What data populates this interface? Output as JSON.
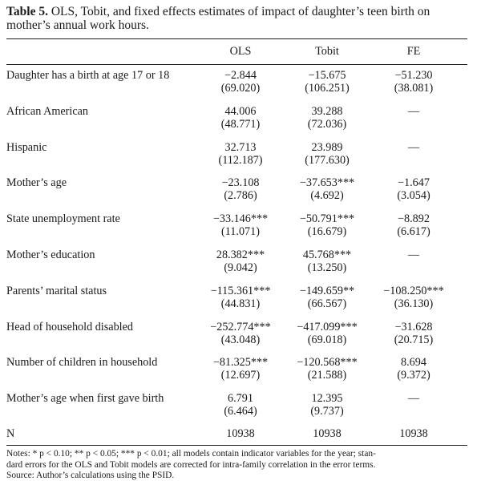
{
  "caption": {
    "label": "Table 5.",
    "text": "OLS, Tobit, and fixed effects estimates of impact of daughter’s teen birth on mother’s annual work hours."
  },
  "columns": [
    "OLS",
    "Tobit",
    "FE"
  ],
  "rows": [
    {
      "label": "Daughter has a birth at age 17 or 18",
      "ols": {
        "est": "−2.844",
        "se": "(69.020)"
      },
      "tobit": {
        "est": "−15.675",
        "se": "(106.251)"
      },
      "fe": {
        "est": "−51.230",
        "se": "(38.081)"
      }
    },
    {
      "label": "African American",
      "ols": {
        "est": "44.006",
        "se": "(48.771)"
      },
      "tobit": {
        "est": "39.288",
        "se": "(72.036)"
      },
      "fe": {
        "est": "—",
        "se": ""
      }
    },
    {
      "label": "Hispanic",
      "ols": {
        "est": "32.713",
        "se": "(112.187)"
      },
      "tobit": {
        "est": "23.989",
        "se": "(177.630)"
      },
      "fe": {
        "est": "—",
        "se": ""
      }
    },
    {
      "label": "Mother’s age",
      "ols": {
        "est": "−23.108",
        "se": "(2.786)"
      },
      "tobit": {
        "est": "−37.653***",
        "se": "(4.692)"
      },
      "fe": {
        "est": "−1.647",
        "se": "(3.054)"
      }
    },
    {
      "label": "State unemployment rate",
      "ols": {
        "est": "−33.146***",
        "se": "(11.071)"
      },
      "tobit": {
        "est": "−50.791***",
        "se": "(16.679)"
      },
      "fe": {
        "est": "−8.892",
        "se": "(6.617)"
      }
    },
    {
      "label": "Mother’s education",
      "ols": {
        "est": "28.382***",
        "se": "(9.042)"
      },
      "tobit": {
        "est": "45.768***",
        "se": "(13.250)"
      },
      "fe": {
        "est": "—",
        "se": ""
      }
    },
    {
      "label": "Parents’ marital status",
      "ols": {
        "est": "−115.361***",
        "se": "(44.831)"
      },
      "tobit": {
        "est": "−149.659**",
        "se": "(66.567)"
      },
      "fe": {
        "est": "−108.250***",
        "se": "(36.130)"
      }
    },
    {
      "label": "Head of household disabled",
      "ols": {
        "est": "−252.774***",
        "se": "(43.048)"
      },
      "tobit": {
        "est": "−417.099***",
        "se": "(69.018)"
      },
      "fe": {
        "est": "−31.628",
        "se": "(20.715)"
      }
    },
    {
      "label": "Number of children in household",
      "ols": {
        "est": "−81.325***",
        "se": "(12.697)"
      },
      "tobit": {
        "est": "−120.568***",
        "se": "(21.588)"
      },
      "fe": {
        "est": "8.694",
        "se": "(9.372)"
      }
    },
    {
      "label": "Mother’s age when first gave birth",
      "ols": {
        "est": "6.791",
        "se": "(6.464)"
      },
      "tobit": {
        "est": "12.395",
        "se": "(9.737)"
      },
      "fe": {
        "est": "—",
        "se": ""
      }
    }
  ],
  "n_row": {
    "label": "N",
    "ols": "10938",
    "tobit": "10938",
    "fe": "10938"
  },
  "notes": {
    "line1": "Notes: * p < 0.10; ** p < 0.05; *** p < 0.01; all models contain indicator variables for the year; stan-",
    "line2": "dard errors for the OLS and Tobit models are corrected for intra-family correlation in the error terms.",
    "line3": "Source: Author’s calculations using the PSID."
  }
}
